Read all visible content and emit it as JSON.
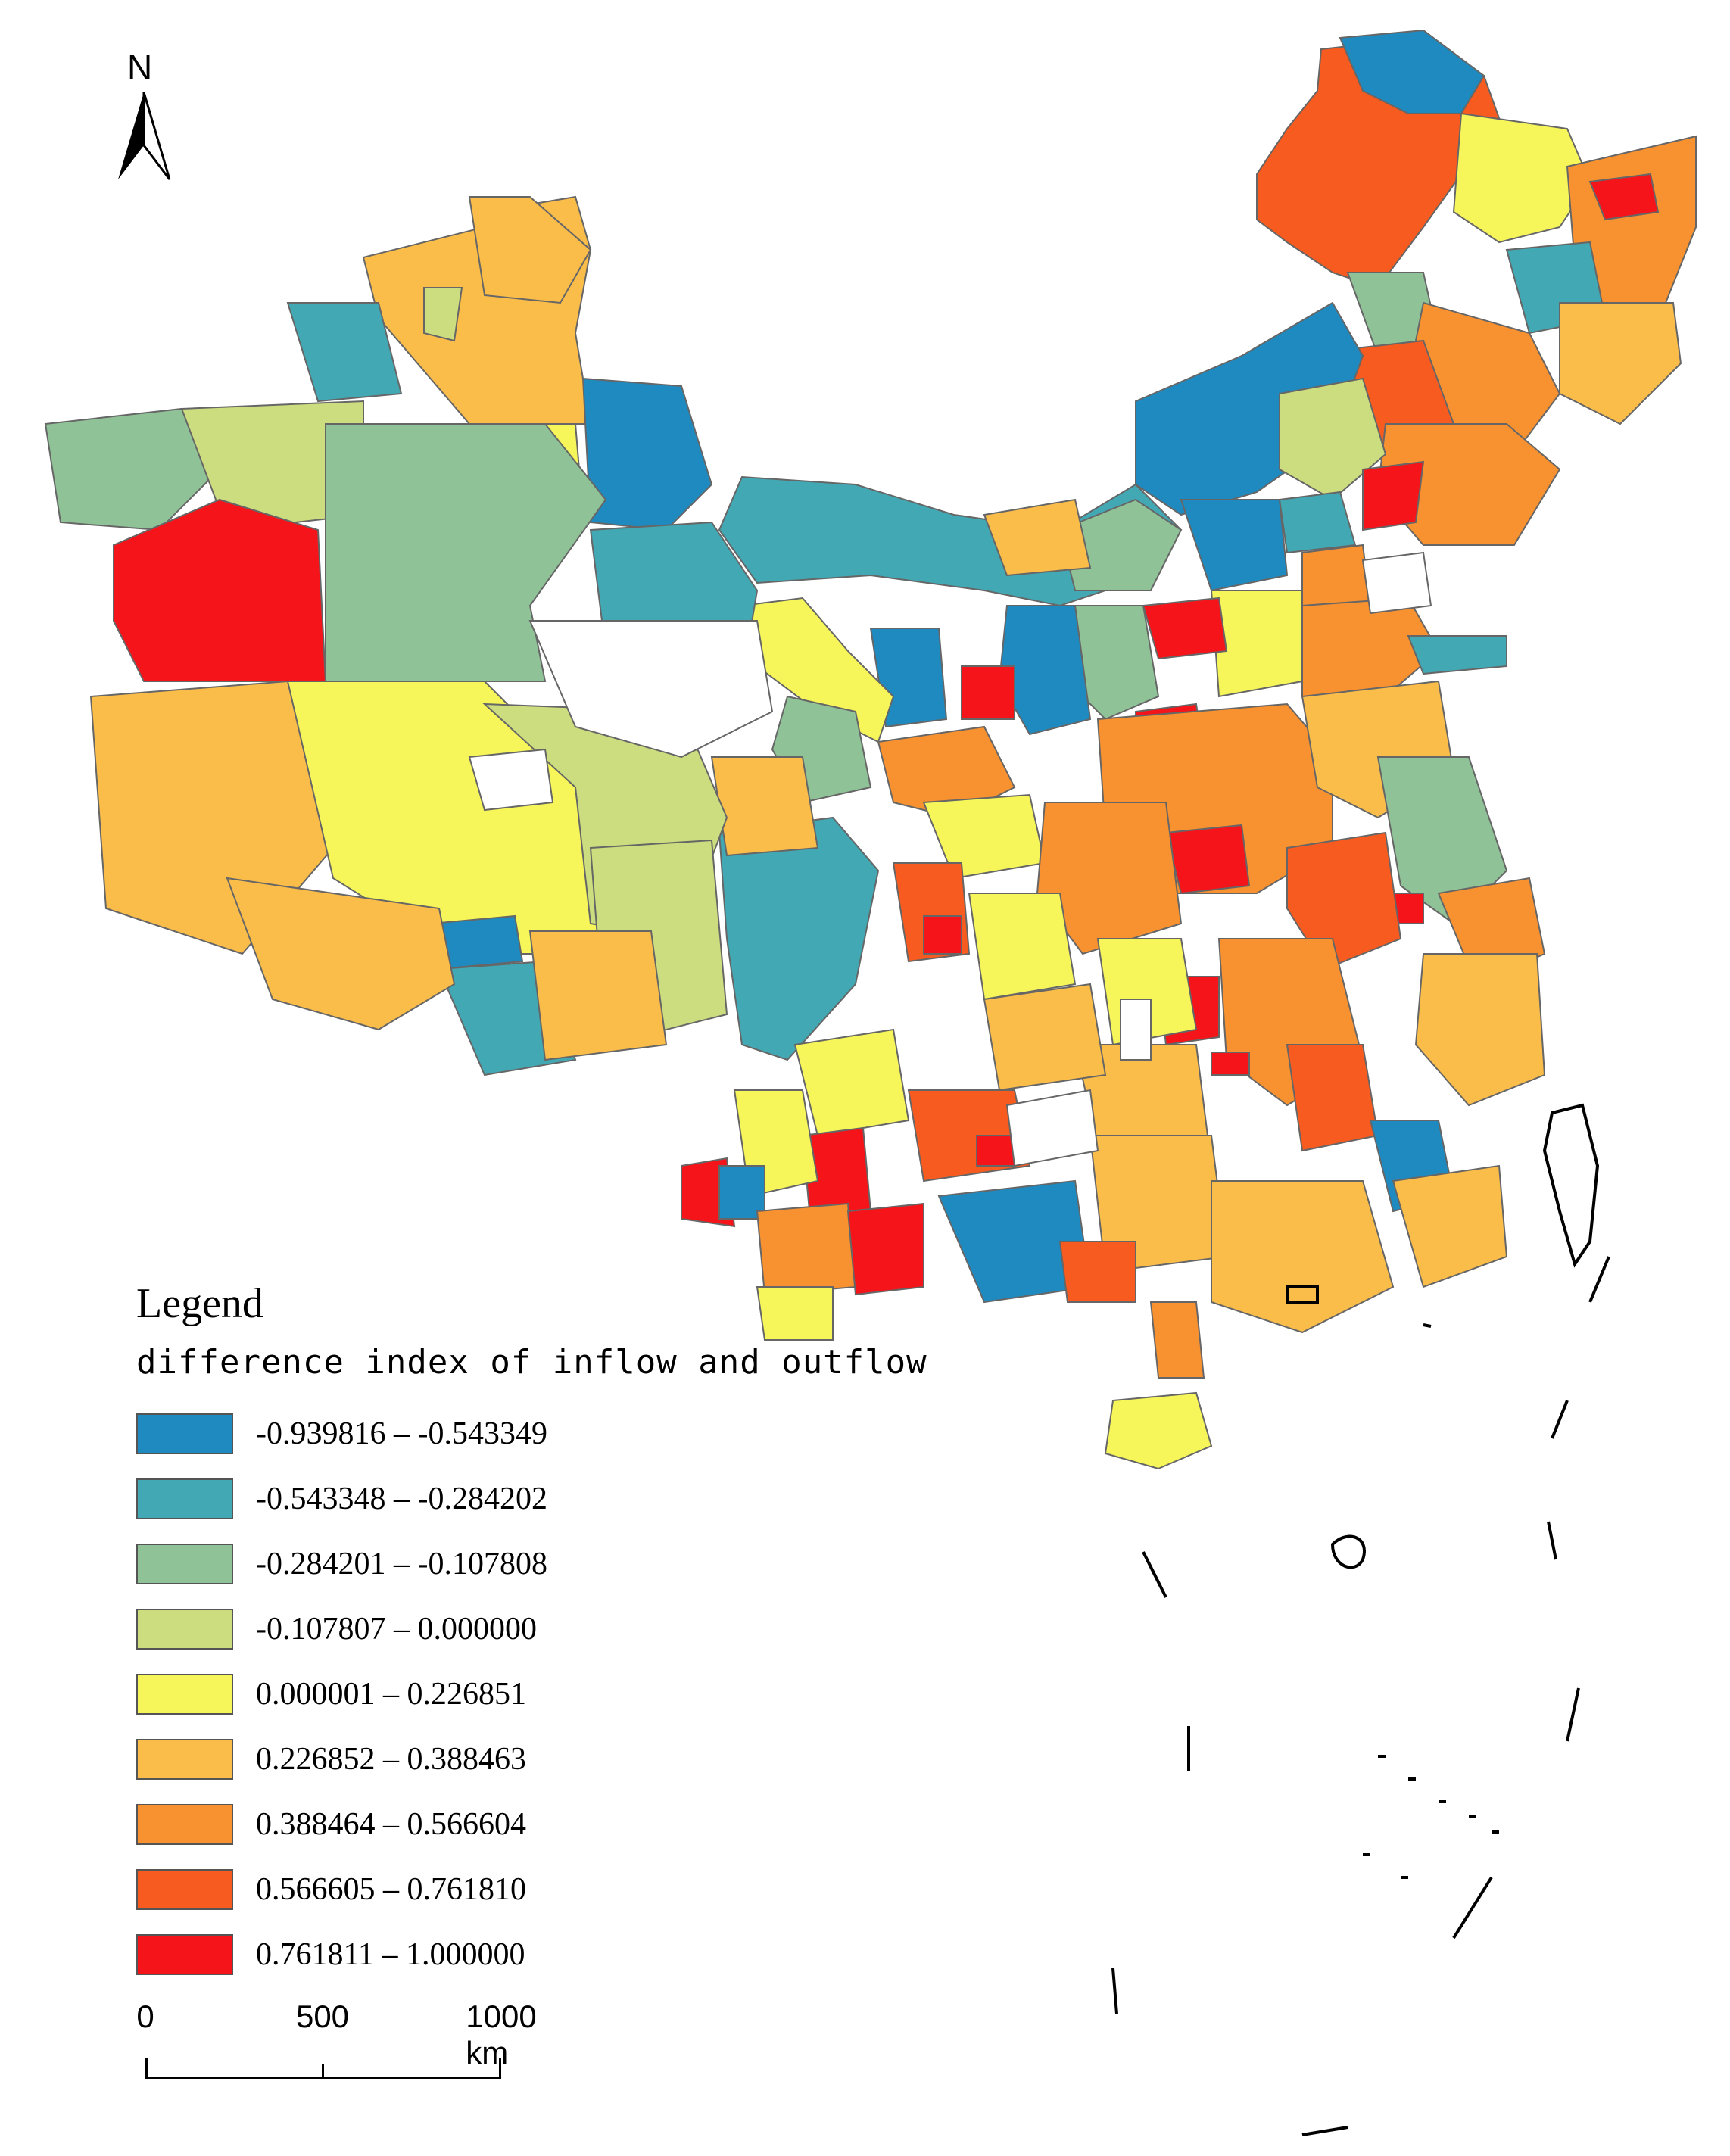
{
  "north_arrow": {
    "label": "N"
  },
  "legend": {
    "title": "Legend",
    "field": "difference index of inflow and outflow",
    "classes": [
      {
        "label": "-0.939816 – -0.543349",
        "color": "#1f8ac0"
      },
      {
        "label": "-0.543348 – -0.284202",
        "color": "#42a8b4"
      },
      {
        "label": "-0.284201 – -0.107808",
        "color": "#8fc297"
      },
      {
        "label": "-0.107807 – 0.000000",
        "color": "#cbdd7e"
      },
      {
        "label": "0.000001 – 0.226851",
        "color": "#f6f65b"
      },
      {
        "label": "0.226852 – 0.388463",
        "color": "#fbbd4a"
      },
      {
        "label": "0.388464 – 0.566604",
        "color": "#f8912f"
      },
      {
        "label": "0.566605 – 0.761810",
        "color": "#f85b1f"
      },
      {
        "label": "0.761811 – 1.000000",
        "color": "#f5141a"
      }
    ]
  },
  "scale_bar": {
    "ticks": [
      "0",
      "500",
      "1000 km"
    ]
  }
}
